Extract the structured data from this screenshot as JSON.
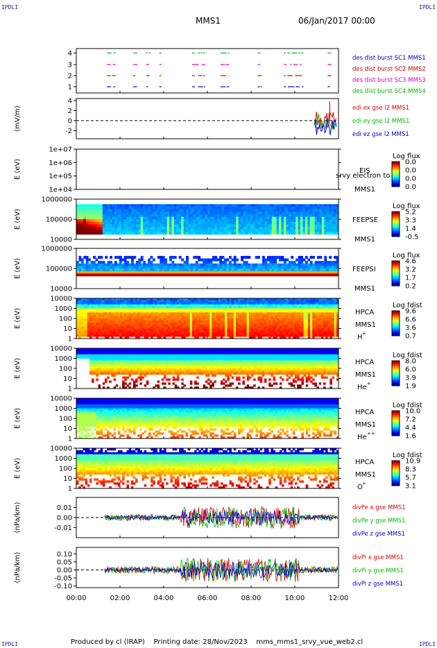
{
  "header": {
    "corner_label": "IPDLI",
    "spacecraft": "MMS1",
    "date_time": "06/Jan/2017 00:00"
  },
  "footer": {
    "produced_by": "Produced by cl (IRAP)",
    "printing_date": "Printing date: 28/Nov/2023",
    "product": "mms_mms1_srvy_vue_web2.cl"
  },
  "colors": {
    "mms1": "#0000cc",
    "mms2": "#cc0000",
    "mms3": "#cc00cc",
    "mms4": "#00bb00",
    "x_comp": "#dd0000",
    "y_comp": "#00bb00",
    "z_comp": "#0000cc"
  },
  "chart_data": {
    "type": "multi-panel",
    "x_axis": {
      "range": [
        "00:00",
        "12:00"
      ],
      "ticks": [
        "00:00",
        "02:00",
        "04:00",
        "06:00",
        "08:00",
        "10:00",
        "12:00"
      ]
    },
    "panels": [
      {
        "id": "burst",
        "type": "timeline",
        "y_ticks": [
          "4",
          "3",
          "2",
          "1"
        ],
        "legend": [
          "des dist burst SC1 MMS1",
          "des dist burst SC2 MMS2",
          "des dist burst SC3 MMS3",
          "des dist burst SC4 MMS4"
        ],
        "legend_colors": [
          "#0000cc",
          "#cc0000",
          "#cc00cc",
          "#00bb00"
        ],
        "intervals_hours": [
          [
            1.4,
            1.8
          ],
          [
            2.6,
            2.8
          ],
          [
            3.2,
            3.4
          ],
          [
            3.8,
            3.9
          ],
          [
            5.3,
            5.9
          ],
          [
            6.6,
            7.0
          ],
          [
            8.3,
            8.5
          ],
          [
            9.5,
            10.4
          ],
          [
            11.5,
            11.7
          ]
        ]
      },
      {
        "id": "edi",
        "type": "line",
        "ylabel": "(mV/m)",
        "y_ticks": [
          "4",
          "2",
          "0",
          "-2"
        ],
        "legend": [
          "edi ex gse l2 MMS1",
          "edi ey gse l2 MMS1",
          "edi ez gse l2 MMS1"
        ],
        "legend_colors": [
          "#dd0000",
          "#00bb00",
          "#0000cc"
        ]
      },
      {
        "id": "eis",
        "type": "heatmap",
        "ylabel": "E (eV)",
        "y_ticks": [
          "1e+07",
          "1e+06",
          "1e+05",
          "1e+04"
        ],
        "instrument": "EIS",
        "spacecraft": "MMS1",
        "overlay_label": "srvy electron to",
        "cbar_title": "Log flux",
        "cbar_ticks": [
          "0.0",
          "0.0",
          "0.0",
          "0.0"
        ]
      },
      {
        "id": "feepse",
        "type": "heatmap",
        "ylabel": "E (eV)",
        "y_ticks": [
          "1000000",
          "100000",
          "10000"
        ],
        "instrument": "FEEPSE",
        "spacecraft": "MMS1",
        "cbar_title": "Log flux",
        "cbar_ticks": [
          "5.2",
          "3.3",
          "1.4",
          "-0.5"
        ]
      },
      {
        "id": "feepsi",
        "type": "heatmap",
        "ylabel": "E (eV)",
        "y_ticks": [
          "1000000",
          "100000",
          "10000"
        ],
        "instrument": "FEEPSI",
        "spacecraft": "MMS1",
        "cbar_title": "Log flux",
        "cbar_ticks": [
          "4.6",
          "3.2",
          "1.7",
          "0.2"
        ]
      },
      {
        "id": "hpca_h",
        "type": "heatmap",
        "ylabel": "E (eV)",
        "y_ticks": [
          "10000",
          "1000",
          "100",
          "10",
          "1"
        ],
        "instrument": "HPCA",
        "spacecraft": "MMS1",
        "species": "H",
        "charge": "+",
        "cbar_title": "Log fdist",
        "cbar_ticks": [
          "9.6",
          "6.6",
          "3.6",
          "0.7"
        ]
      },
      {
        "id": "hpca_he1",
        "type": "heatmap",
        "ylabel": "E (eV)",
        "y_ticks": [
          "10000",
          "1000",
          "100",
          "10",
          "1"
        ],
        "instrument": "HPCA",
        "spacecraft": "MMS1",
        "species": "He",
        "charge": "+",
        "cbar_title": "Log fdist",
        "cbar_ticks": [
          "8.0",
          "6.0",
          "3.9",
          "1.9"
        ]
      },
      {
        "id": "hpca_he2",
        "type": "heatmap",
        "ylabel": "E (eV)",
        "y_ticks": [
          "10000",
          "1000",
          "100",
          "10",
          "1"
        ],
        "instrument": "HPCA",
        "spacecraft": "MMS1",
        "species": "He",
        "charge": "++",
        "cbar_title": "Log fdist",
        "cbar_ticks": [
          "10.0",
          "7.2",
          "4.4",
          "1.6"
        ]
      },
      {
        "id": "hpca_o",
        "type": "heatmap",
        "ylabel": "E (eV)",
        "y_ticks": [
          "10000",
          "1000",
          "100",
          "10",
          "1"
        ],
        "instrument": "HPCA",
        "spacecraft": "MMS1",
        "species": "O",
        "charge": "+",
        "cbar_title": "Log fdist",
        "cbar_ticks": [
          "10.9",
          "8.3",
          "5.7",
          "3.1"
        ]
      },
      {
        "id": "divpe",
        "type": "line",
        "ylabel": "(nPa/km)",
        "y_ticks": [
          "0.01",
          "0.00",
          "-0.01"
        ],
        "legend": [
          "divPe x gse MMS1",
          "divPe y gse MMS1",
          "divPe z gse MMS1"
        ],
        "legend_colors": [
          "#dd0000",
          "#00bb00",
          "#0000cc"
        ]
      },
      {
        "id": "divpi",
        "type": "line",
        "ylabel": "(nPa/km)",
        "y_ticks": [
          "0.10",
          "0.05",
          "0.00",
          "-0.05",
          "-0.10"
        ],
        "legend": [
          "divPi x gse MMS1",
          "divPi y gse MMS1",
          "divPi z gse MMS1"
        ],
        "legend_colors": [
          "#dd0000",
          "#00bb00",
          "#0000cc"
        ]
      }
    ]
  }
}
